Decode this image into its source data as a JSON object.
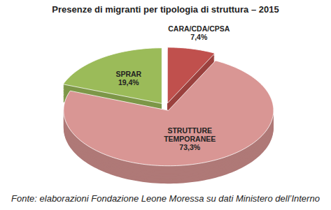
{
  "chart_data": {
    "type": "pie",
    "title": "Presenze di migranti per tipologia di struttura – 2015",
    "caption": "Fonte: elaborazioni Fondazione Leone Moressa su dati Ministero dell’Interno",
    "categories": [
      "CARA/CDA/CPSA",
      "STRUTTURE TEMPORANEE",
      "SPRAR"
    ],
    "values": [
      7.4,
      73.3,
      19.4
    ],
    "value_labels": [
      "7,4%",
      "73,3%",
      "19,4%"
    ],
    "colors": [
      "#c0504d",
      "#d99694",
      "#9bbb59"
    ],
    "data_labels": true
  }
}
